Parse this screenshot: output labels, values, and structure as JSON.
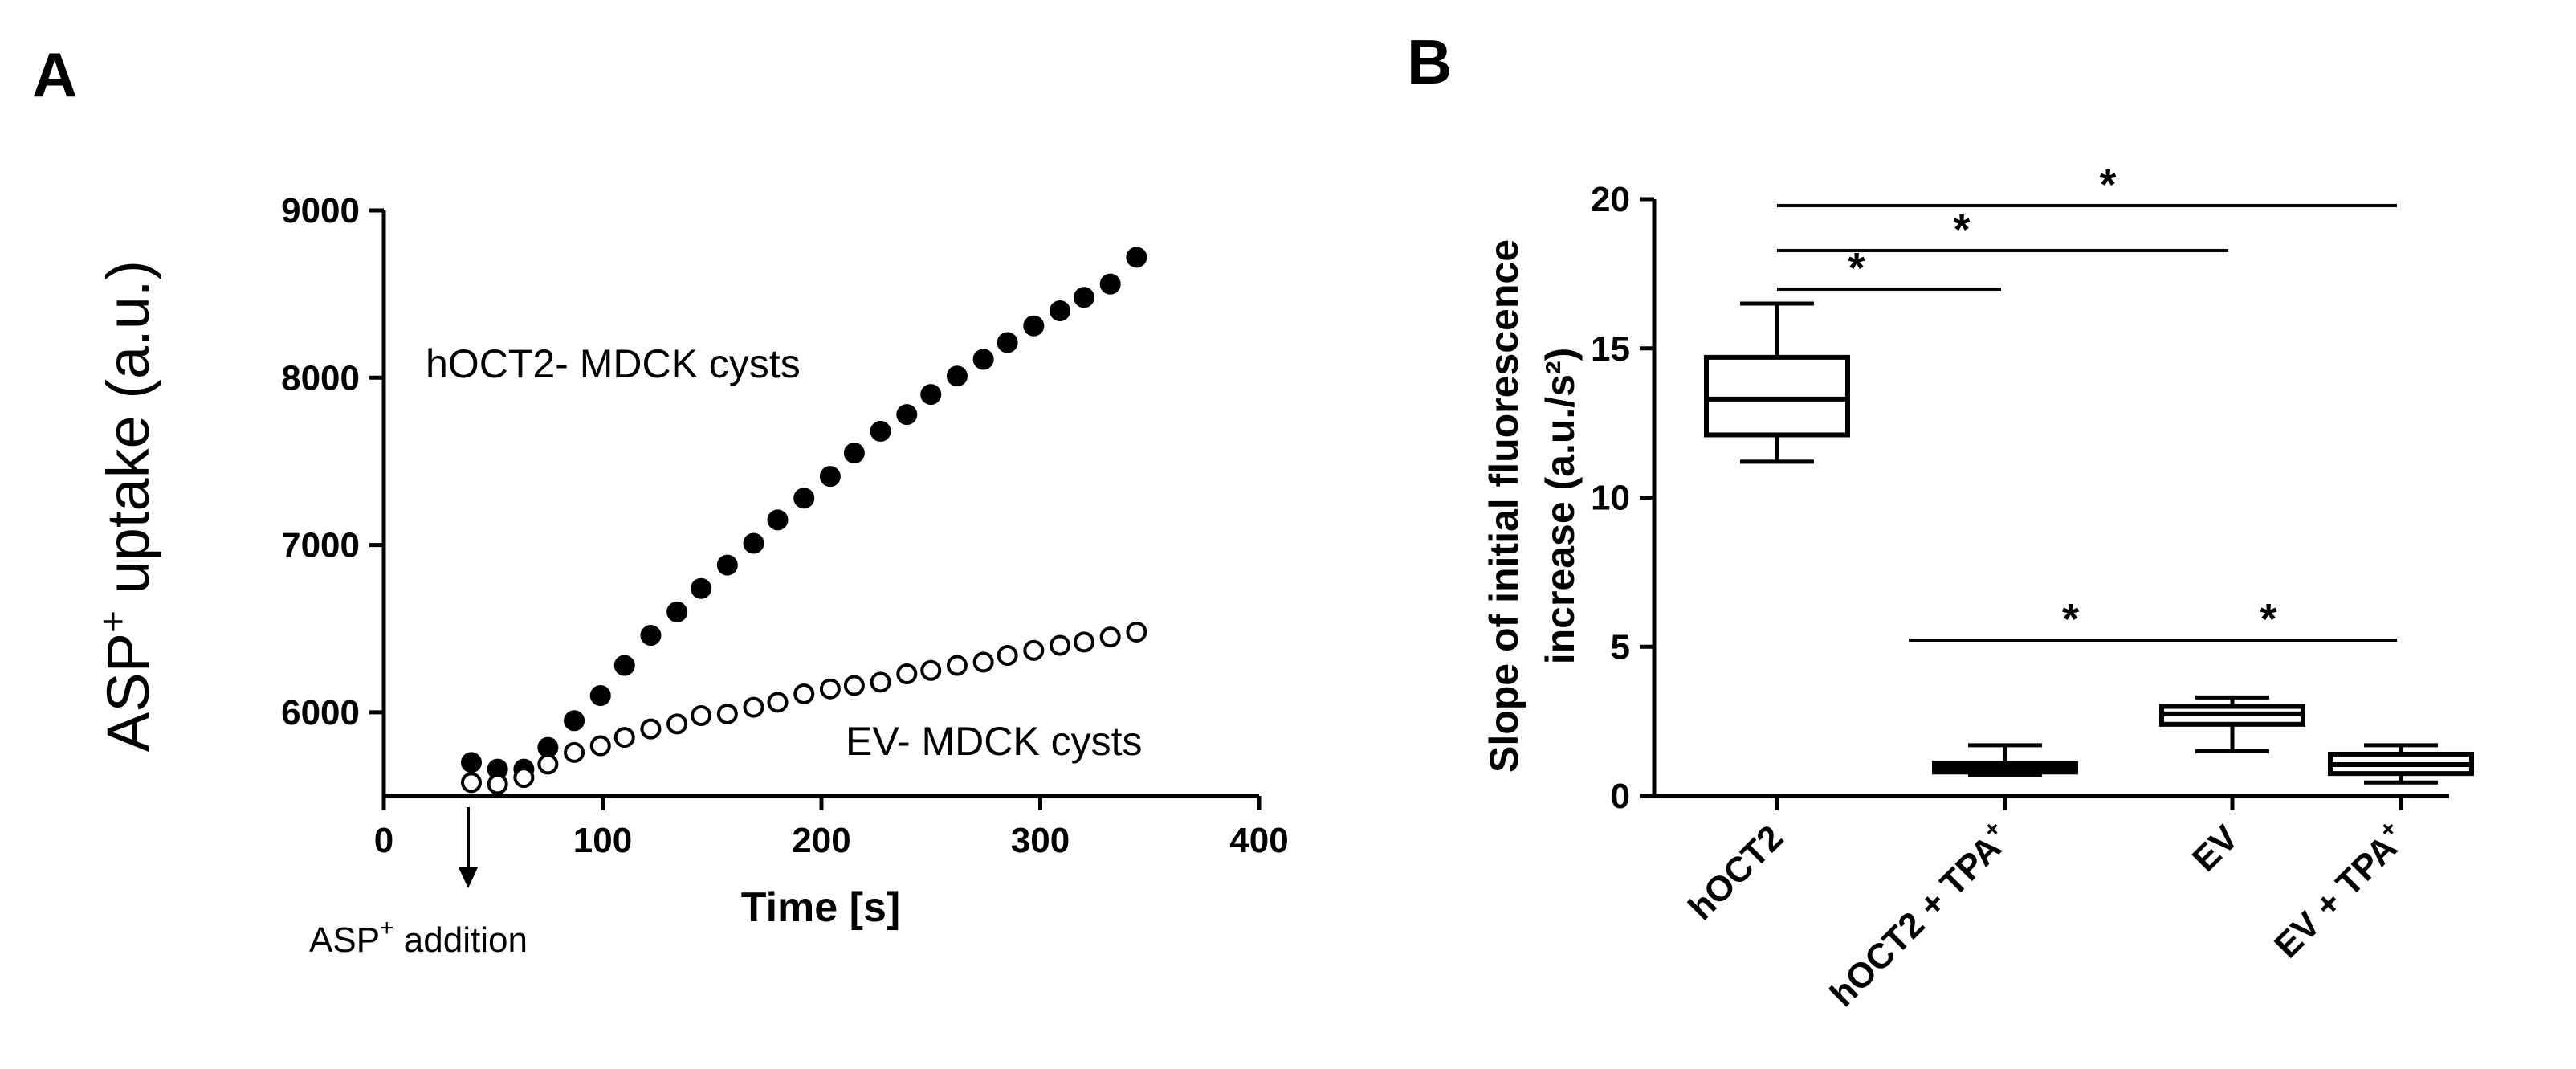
{
  "figure": {
    "panel_a_label": "A",
    "panel_b_label": "B"
  },
  "chart_data": [
    {
      "type": "scatter",
      "panel": "A",
      "title": "",
      "xlabel": "Time [s]",
      "ylabel": "ASP",
      "ylabel_superscript": "+",
      "ylabel_suffix": " uptake (a.u.)",
      "xlim": [
        0,
        400
      ],
      "ylim": [
        5500,
        9000
      ],
      "xticks": [
        "0",
        "100",
        "200",
        "300",
        "400"
      ],
      "yticks": [
        "6000",
        "7000",
        "8000",
        "9000"
      ],
      "annotation": {
        "text": "ASP",
        "superscript": "+",
        "suffix": " addition",
        "x": 40
      },
      "series": [
        {
          "name": "hOCT2- MDCK cysts",
          "marker": "filled-circle",
          "color": "#000000",
          "x": [
            40,
            52,
            64,
            75,
            87,
            99,
            110,
            122,
            134,
            145,
            157,
            169,
            180,
            192,
            204,
            215,
            227,
            239,
            250,
            262,
            274,
            285,
            297,
            309,
            320,
            332,
            344
          ],
          "y": [
            5700,
            5660,
            5660,
            5790,
            5950,
            6100,
            6280,
            6460,
            6600,
            6740,
            6880,
            7010,
            7150,
            7280,
            7410,
            7550,
            7680,
            7780,
            7900,
            8010,
            8110,
            8210,
            8310,
            8400,
            8480,
            8560,
            8720
          ]
        },
        {
          "name": "EV- MDCK cysts",
          "marker": "open-circle",
          "color": "#000000",
          "x": [
            40,
            52,
            64,
            75,
            87,
            99,
            110,
            122,
            134,
            145,
            157,
            169,
            180,
            192,
            204,
            215,
            227,
            239,
            250,
            262,
            274,
            285,
            297,
            309,
            320,
            332,
            344
          ],
          "y": [
            5580,
            5570,
            5610,
            5690,
            5760,
            5800,
            5850,
            5900,
            5930,
            5980,
            5990,
            6030,
            6060,
            6110,
            6140,
            6160,
            6180,
            6230,
            6250,
            6280,
            6300,
            6340,
            6370,
            6400,
            6420,
            6450,
            6480
          ]
        }
      ]
    },
    {
      "type": "box",
      "panel": "B",
      "title": "",
      "ylabel_line1": "Slope of initial fluorescence",
      "ylabel_line2": "increase (a.u./s²)",
      "ylim": [
        0,
        20
      ],
      "yticks": [
        "0",
        "5",
        "10",
        "15",
        "20"
      ],
      "categories": [
        "hOCT2",
        "hOCT2 + TPA",
        "EV",
        "EV + TPA"
      ],
      "category_superscripts": [
        "",
        "+",
        "",
        "+"
      ],
      "boxes": [
        {
          "min": 11.2,
          "q1": 12.1,
          "median": 13.3,
          "q3": 14.7,
          "max": 16.5
        },
        {
          "min": 0.7,
          "q1": 0.8,
          "median": 0.95,
          "q3": 1.1,
          "max": 1.7
        },
        {
          "min": 1.5,
          "q1": 2.4,
          "median": 2.75,
          "q3": 3.0,
          "max": 3.3
        },
        {
          "min": 0.45,
          "q1": 0.75,
          "median": 1.05,
          "q3": 1.4,
          "max": 1.7
        }
      ],
      "significance": [
        {
          "from": 0,
          "to": 1,
          "label": "*"
        },
        {
          "from": 0,
          "to": 2,
          "label": "*"
        },
        {
          "from": 0,
          "to": 3,
          "label": "*"
        },
        {
          "from": 1,
          "to": 2,
          "label": "*"
        },
        {
          "from": 2,
          "to": 3,
          "label": "*"
        }
      ]
    }
  ]
}
